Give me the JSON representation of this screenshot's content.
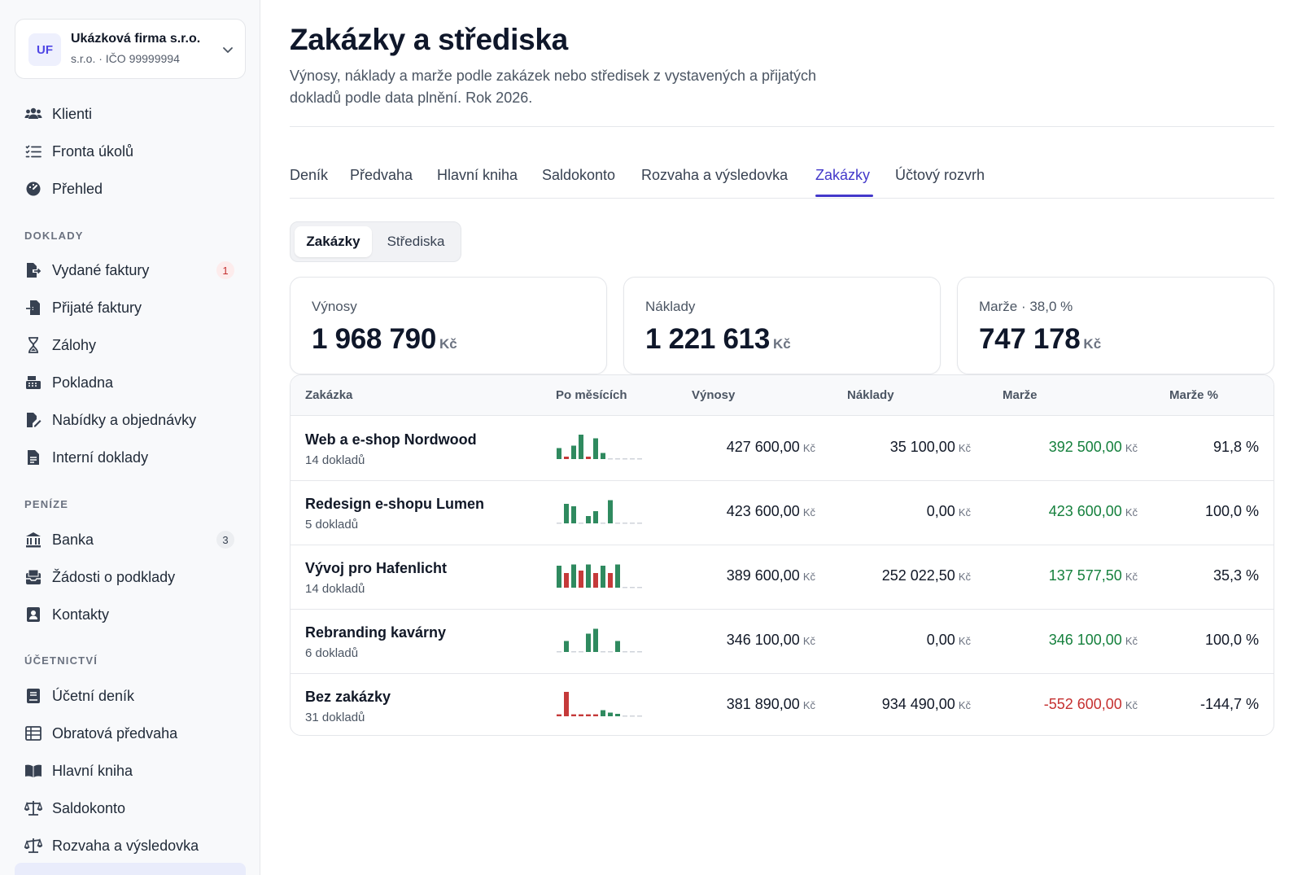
{
  "org": {
    "initials": "UF",
    "name": "Ukázková firma s.r.o.",
    "sub": "s.r.o. · IČO 99999994"
  },
  "nav": {
    "top": [
      {
        "label": "Klienti",
        "icon": "users-icon"
      },
      {
        "label": "Fronta úkolů",
        "icon": "task-list-icon"
      },
      {
        "label": "Přehled",
        "icon": "dashboard-icon"
      }
    ],
    "doklady_title": "DOKLADY",
    "doklady": [
      {
        "label": "Vydané faktury",
        "icon": "file-export-icon",
        "badge": "1"
      },
      {
        "label": "Přijaté faktury",
        "icon": "file-import-icon"
      },
      {
        "label": "Zálohy",
        "icon": "hourglass-icon"
      },
      {
        "label": "Pokladna",
        "icon": "cash-register-icon"
      },
      {
        "label": "Nabídky a objednávky",
        "icon": "file-edit-icon"
      },
      {
        "label": "Interní doklady",
        "icon": "document-icon"
      }
    ],
    "penize_title": "PENÍZE",
    "penize": [
      {
        "label": "Banka",
        "icon": "bank-icon",
        "badge": "3"
      },
      {
        "label": "Žádosti o podklady",
        "icon": "inbox-request-icon"
      },
      {
        "label": "Kontakty",
        "icon": "contact-card-icon"
      }
    ],
    "ucetnictvi_title": "ÚČETNICTVÍ",
    "ucetnictvi": [
      {
        "label": "Účetní deník",
        "icon": "journal-icon"
      },
      {
        "label": "Obratová předvaha",
        "icon": "table-icon"
      },
      {
        "label": "Hlavní kniha",
        "icon": "book-open-icon"
      },
      {
        "label": "Saldokonto",
        "icon": "scale-icon"
      },
      {
        "label": "Rozvaha a výsledovka",
        "icon": "balance-icon"
      }
    ]
  },
  "page": {
    "title": "Zakázky a střediska",
    "description": "Výnosy, náklady a marže podle zakázek nebo středisek z vystavených a přijatých dokladů podle data plnění. Rok 2026."
  },
  "tabs": [
    "Deník",
    "Předvaha",
    "Hlavní kniha",
    "Saldokonto",
    "Rozvaha a výsledovka",
    "Zakázky",
    "Účtový rozvrh"
  ],
  "active_tab": "Zakázky",
  "segment": {
    "options": [
      "Zakázky",
      "Střediska"
    ],
    "selected": "Zakázky"
  },
  "cards": [
    {
      "label": "Výnosy",
      "value": "1 968 790",
      "unit": "Kč"
    },
    {
      "label": "Náklady",
      "value": "1 221 613",
      "unit": "Kč"
    },
    {
      "label": "Marže · 38,0 %",
      "value": "747 178",
      "unit": "Kč"
    }
  ],
  "table": {
    "columns": [
      "Zakázka",
      "Po měsících",
      "Výnosy",
      "Náklady",
      "Marže",
      "Marže %"
    ],
    "currency": "Kč",
    "rows": [
      {
        "name": "Web a e-shop Nordwood",
        "docs": "14 dokladů",
        "revenue": "427 600,00",
        "costs": "35 100,00",
        "margin": "392 500,00",
        "margin_pct": "91,8 %",
        "positive": true,
        "monthly": [
          0.45,
          -0.1,
          0.55,
          1.0,
          -0.1,
          0.85,
          0.25,
          0,
          0,
          0,
          0,
          0
        ]
      },
      {
        "name": "Redesign e-shopu Lumen",
        "docs": "5 dokladů",
        "revenue": "423 600,00",
        "costs": "0,00",
        "margin": "423 600,00",
        "margin_pct": "100,0 %",
        "positive": true,
        "monthly": [
          0,
          0.8,
          0.7,
          0,
          0.3,
          0.5,
          0,
          0.95,
          0,
          0,
          0,
          0
        ]
      },
      {
        "name": "Vývoj pro Hafenlicht",
        "docs": "14 dokladů",
        "revenue": "389 600,00",
        "costs": "252 022,50",
        "margin": "137 577,50",
        "margin_pct": "35,3 %",
        "positive": true,
        "monthly": [
          0.9,
          -0.6,
          0.95,
          -0.7,
          0.95,
          -0.6,
          0.9,
          -0.6,
          0.95,
          0,
          0,
          0
        ]
      },
      {
        "name": "Rebranding kavárny",
        "docs": "6 dokladů",
        "revenue": "346 100,00",
        "costs": "0,00",
        "margin": "346 100,00",
        "margin_pct": "100,0 %",
        "positive": true,
        "monthly": [
          0,
          0.45,
          0,
          0,
          0.75,
          0.95,
          0,
          0,
          0.45,
          0,
          0,
          0
        ]
      },
      {
        "name": "Bez zakázky",
        "docs": "31 dokladů",
        "revenue": "381 890,00",
        "costs": "934 490,00",
        "margin": "-552 600,00",
        "margin_pct": "-144,7 %",
        "positive": false,
        "monthly": [
          -0.08,
          -1.0,
          -0.08,
          -0.08,
          -0.08,
          -0.08,
          0.25,
          0.15,
          0.1,
          0,
          0,
          0
        ]
      }
    ]
  },
  "colors": {
    "accent": "#4338ca",
    "positive": "#15803d",
    "negative": "#c53030",
    "bar_pos": "#2f8a5f",
    "bar_neg": "#c53a3a",
    "bar_zero": "#cfd3da"
  }
}
